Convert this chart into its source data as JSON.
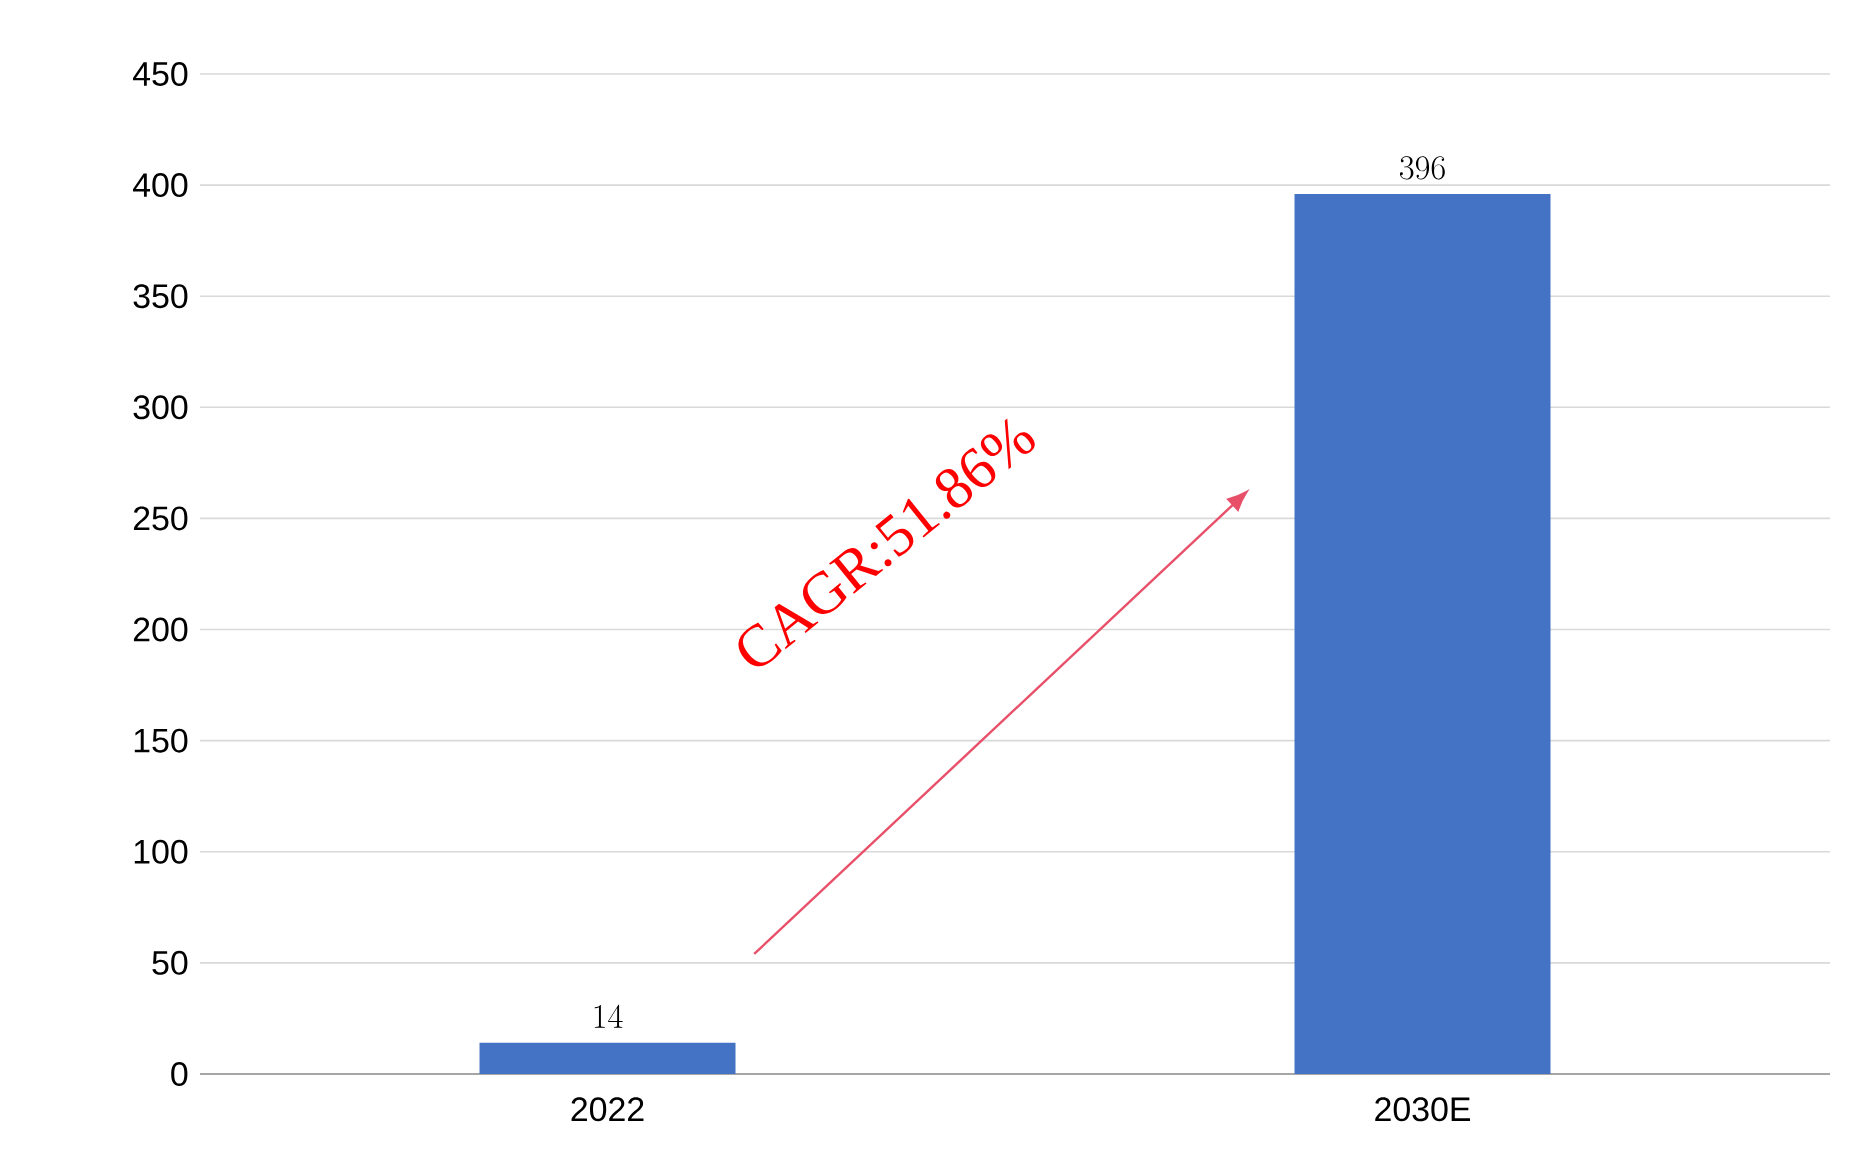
{
  "chart_data": {
    "type": "bar",
    "categories": [
      "2022",
      "2030E"
    ],
    "values": [
      14,
      396
    ],
    "color": "#4472c4",
    "ylim": [
      0,
      450
    ],
    "yticks": [
      0,
      50,
      100,
      150,
      200,
      250,
      300,
      350,
      400,
      450
    ],
    "grid": "y",
    "data_labels": true,
    "annotations": [
      "CAGR:51.86%"
    ]
  }
}
